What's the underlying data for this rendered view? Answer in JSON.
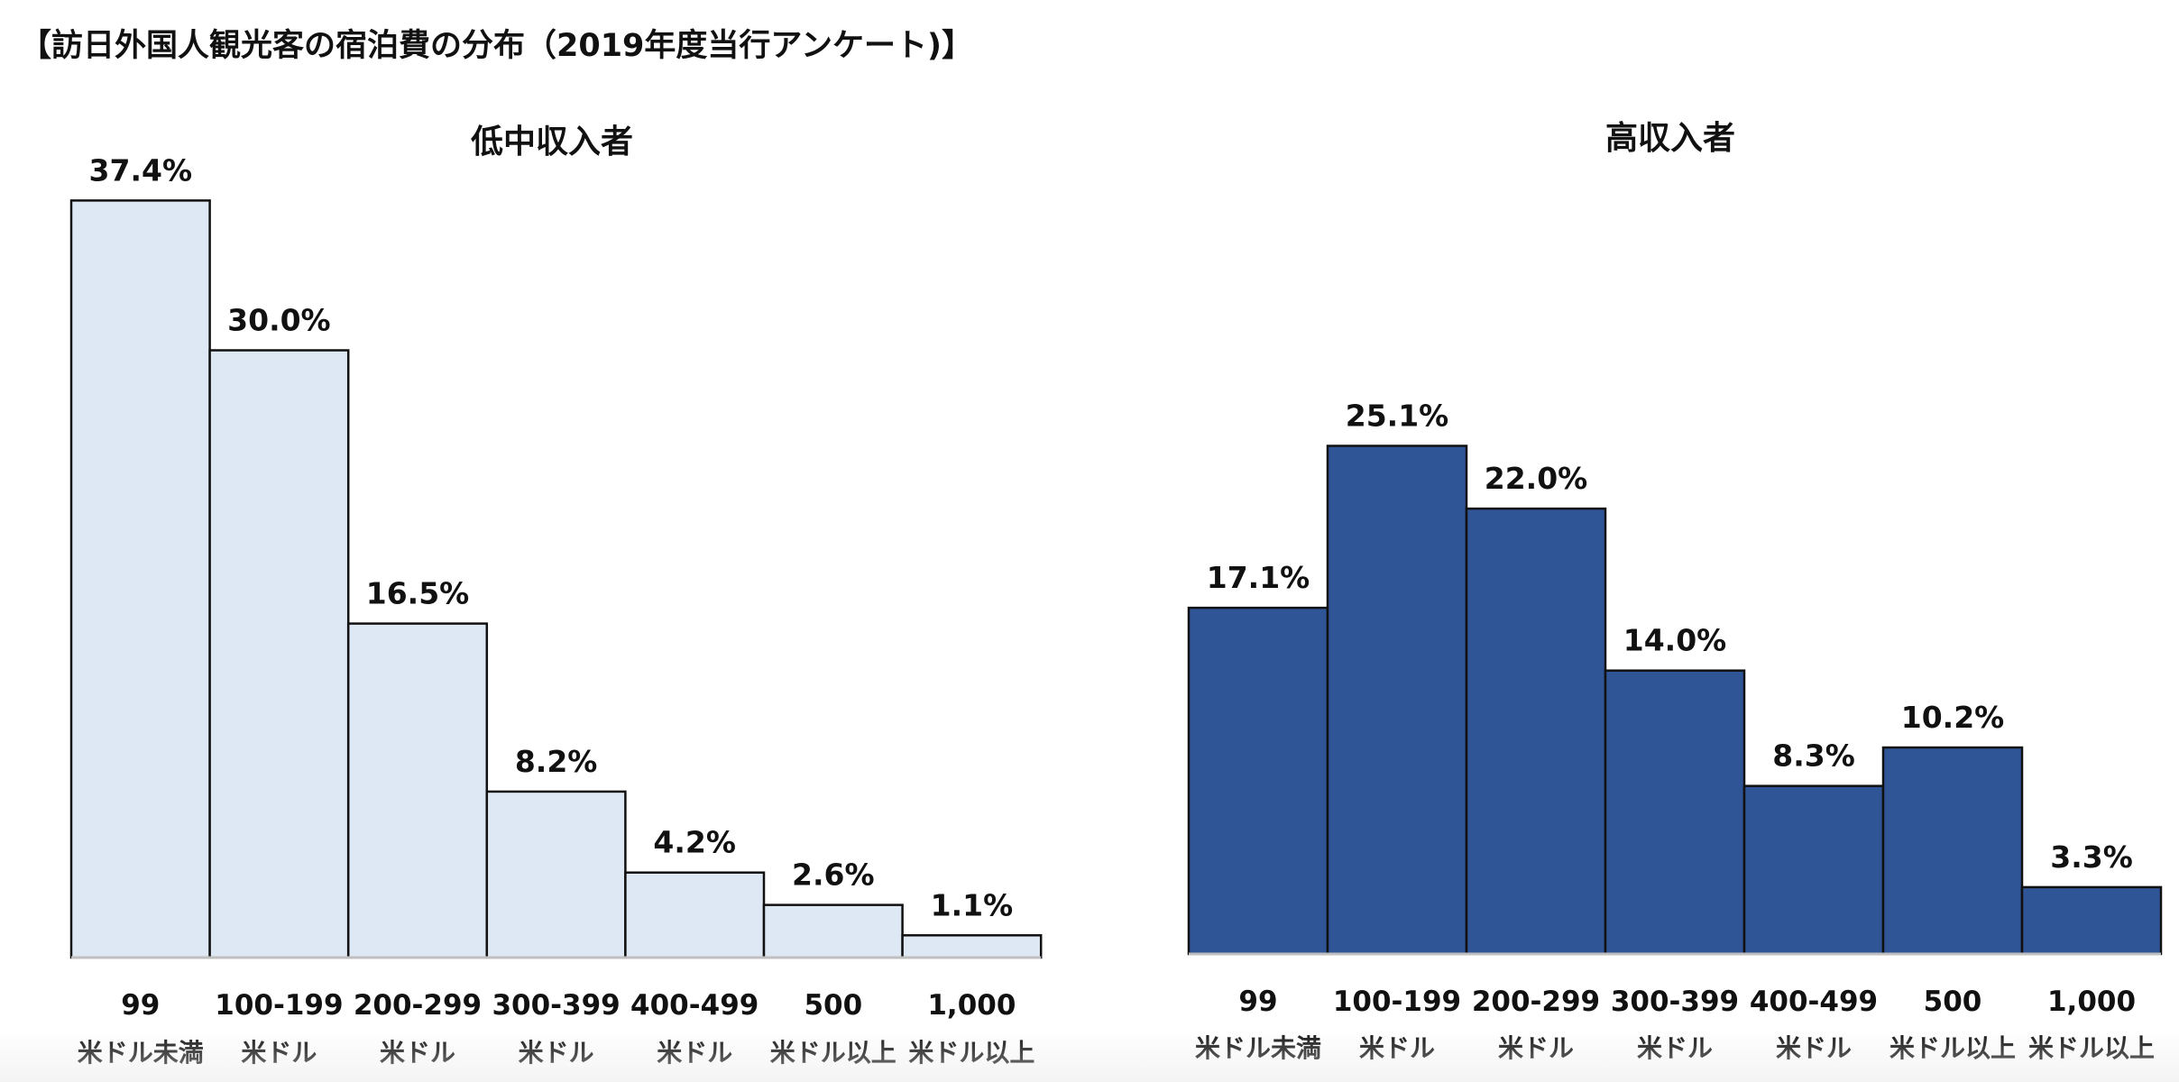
{
  "page": {
    "title": "【訪日外国人観光客の宿泊費の分布（2019年度当行アンケート)】"
  },
  "chart_data": [
    {
      "type": "bar",
      "title": "低中収入者",
      "categories": [
        [
          "99",
          "米ドル未満"
        ],
        [
          "100-199",
          "米ドル"
        ],
        [
          "200-299",
          "米ドル"
        ],
        [
          "300-399",
          "米ドル"
        ],
        [
          "400-499",
          "米ドル"
        ],
        [
          "500",
          "米ドル以上"
        ],
        [
          "1,000",
          "米ドル以上"
        ]
      ],
      "values": [
        37.4,
        30.0,
        16.5,
        8.2,
        4.2,
        2.6,
        1.1
      ],
      "value_labels": [
        "37.4%",
        "30.0%",
        "16.5%",
        "8.2%",
        "4.2%",
        "2.6%",
        "1.1%"
      ],
      "ylim": [
        0,
        40
      ],
      "grid": false,
      "bar_color": "#dde8f4",
      "edge_color": "#111111"
    },
    {
      "type": "bar",
      "title": "高収入者",
      "categories": [
        [
          "99",
          "米ドル未満"
        ],
        [
          "100-199",
          "米ドル"
        ],
        [
          "200-299",
          "米ドル"
        ],
        [
          "300-399",
          "米ドル"
        ],
        [
          "400-499",
          "米ドル"
        ],
        [
          "500",
          "米ドル以上"
        ],
        [
          "1,000",
          "米ドル以上"
        ]
      ],
      "values": [
        17.1,
        25.1,
        22.0,
        14.0,
        8.3,
        10.2,
        3.3
      ],
      "value_labels": [
        "17.1%",
        "25.1%",
        "22.0%",
        "14.0%",
        "8.3%",
        "10.2%",
        "3.3%"
      ],
      "ylim": [
        0,
        40
      ],
      "grid": false,
      "bar_color": "#2f5597",
      "edge_color": "#111111"
    }
  ]
}
